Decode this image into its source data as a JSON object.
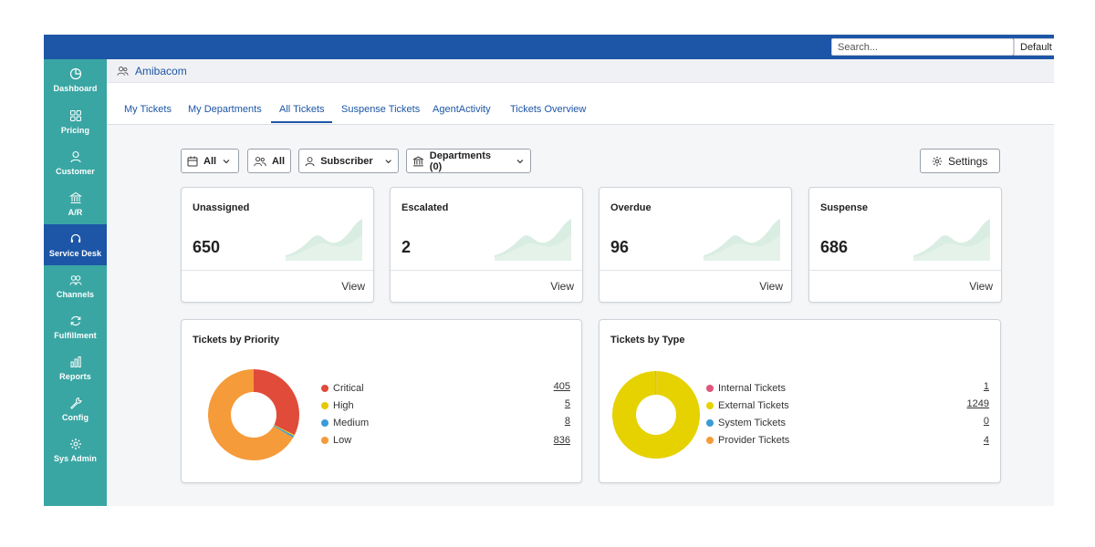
{
  "topbar": {
    "search_placeholder": "Search...",
    "default_label": "Default"
  },
  "sidebar": {
    "items": [
      {
        "label": "Dashboard",
        "icon": "dashboard-icon"
      },
      {
        "label": "Pricing",
        "icon": "grid-icon"
      },
      {
        "label": "Customer",
        "icon": "user-icon"
      },
      {
        "label": "A/R",
        "icon": "bank-icon"
      },
      {
        "label": "Service Desk",
        "icon": "headset-icon",
        "active": true
      },
      {
        "label": "Channels",
        "icon": "channels-icon"
      },
      {
        "label": "Fulfillment",
        "icon": "cycle-icon"
      },
      {
        "label": "Reports",
        "icon": "bar-chart-icon"
      },
      {
        "label": "Config",
        "icon": "wrench-icon"
      },
      {
        "label": "Sys Admin",
        "icon": "gear-icon"
      }
    ]
  },
  "breadcrumb": {
    "label": "Amibacom"
  },
  "tabs": [
    "My Tickets",
    "My Departments",
    "All Tickets",
    "Suspense Tickets",
    "AgentActivity",
    "Tickets Overview"
  ],
  "filters": {
    "date": "All",
    "people": "All",
    "subscriber": "Subscriber",
    "departments": "Departments (0)",
    "settings": "Settings"
  },
  "stats": [
    {
      "title": "Unassigned",
      "value": "650",
      "view": "View"
    },
    {
      "title": "Escalated",
      "value": "2",
      "view": "View"
    },
    {
      "title": "Overdue",
      "value": "96",
      "view": "View"
    },
    {
      "title": "Suspense",
      "value": "686",
      "view": "View"
    }
  ],
  "colors": {
    "primary": "#1d56a6",
    "sidebar": "#3aa6a3",
    "spark": "#cfe8dc",
    "critical": "#e04b3a",
    "high": "#e5c800",
    "medium": "#3a9bd9",
    "low": "#f59b3a",
    "internal": "#e0557c",
    "external": "#e5d200",
    "system": "#3a9bd9",
    "provider": "#f59b3a"
  },
  "priority_panel": {
    "title": "Tickets by Priority",
    "items": [
      {
        "label": "Critical",
        "value": "405",
        "color": "#e04b3a"
      },
      {
        "label": "High",
        "value": "5",
        "color": "#e5c800"
      },
      {
        "label": "Medium",
        "value": "8",
        "color": "#3a9bd9"
      },
      {
        "label": "Low",
        "value": "836",
        "color": "#f59b3a"
      }
    ]
  },
  "type_panel": {
    "title": "Tickets by Type",
    "items": [
      {
        "label": "Internal Tickets",
        "value": "1",
        "color": "#e0557c"
      },
      {
        "label": "External Tickets",
        "value": "1249",
        "color": "#e5d200"
      },
      {
        "label": "System Tickets",
        "value": "0",
        "color": "#3a9bd9"
      },
      {
        "label": "Provider Tickets",
        "value": "4",
        "color": "#f59b3a"
      }
    ]
  }
}
